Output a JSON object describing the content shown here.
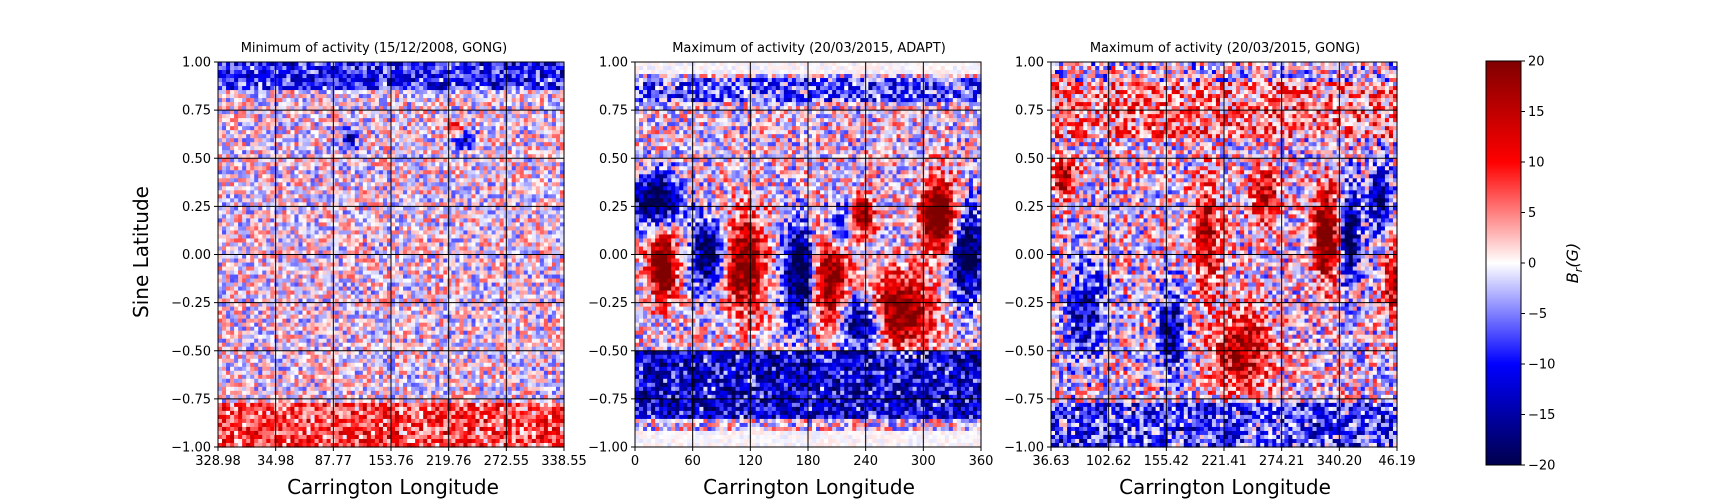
{
  "figure": {
    "ylabel": "Sine Latitude",
    "xlabel": "Carrington Longitude"
  },
  "chart_data": [
    {
      "type": "heatmap",
      "title": "Minimum of activity (15/12/2008, GONG)",
      "xlabel": "Carrington Longitude",
      "ylabel": "Sine Latitude",
      "x_tick_labels": [
        "328.98",
        "34.98",
        "87.77",
        "153.76",
        "219.76",
        "272.55",
        "338.55"
      ],
      "y_ticks": [
        1.0,
        0.75,
        0.5,
        0.25,
        0.0,
        -0.25,
        -0.5,
        -0.75,
        -1.0
      ],
      "y_tick_labels": [
        "1.00",
        "0.75",
        "0.50",
        "0.25",
        "0.00",
        "−0.25",
        "−0.50",
        "−0.75",
        "−1.00"
      ],
      "ylim": [
        -1.0,
        1.0
      ],
      "grid": true,
      "colormap": "seismic",
      "clim": [
        -20,
        20
      ]
    },
    {
      "type": "heatmap",
      "title": "Maximum of activity (20/03/2015, ADAPT)",
      "xlabel": "Carrington Longitude",
      "x_tick_labels": [
        "0",
        "60",
        "120",
        "180",
        "240",
        "300",
        "360"
      ],
      "xlim": [
        0,
        360
      ],
      "y_ticks": [
        1.0,
        0.75,
        0.5,
        0.25,
        0.0,
        -0.25,
        -0.5,
        -0.75,
        -1.0
      ],
      "y_tick_labels": [
        "1.00",
        "0.75",
        "0.50",
        "0.25",
        "0.00",
        "−0.25",
        "−0.50",
        "−0.75",
        "−1.00"
      ],
      "ylim": [
        -1.0,
        1.0
      ],
      "grid": true,
      "colormap": "seismic",
      "clim": [
        -20,
        20
      ]
    },
    {
      "type": "heatmap",
      "title": "Maximum of activity (20/03/2015, GONG)",
      "xlabel": "Carrington Longitude",
      "x_tick_labels": [
        "36.63",
        "102.62",
        "155.42",
        "221.41",
        "274.21",
        "340.20",
        "46.19"
      ],
      "y_ticks": [
        1.0,
        0.75,
        0.5,
        0.25,
        0.0,
        -0.25,
        -0.5,
        -0.75,
        -1.0
      ],
      "y_tick_labels": [
        "1.00",
        "0.75",
        "0.50",
        "0.25",
        "0.00",
        "−0.25",
        "−0.50",
        "−0.75",
        "−1.00"
      ],
      "ylim": [
        -1.0,
        1.0
      ],
      "grid": true,
      "colormap": "seismic",
      "clim": [
        -20,
        20
      ]
    }
  ],
  "colorbar": {
    "label_main": "B",
    "label_sub": "r",
    "label_rest": "(G)",
    "ticks": [
      20,
      15,
      10,
      5,
      0,
      -5,
      -10,
      -15,
      -20
    ],
    "tick_labels": [
      "20",
      "15",
      "10",
      "5",
      "0",
      "−5",
      "−10",
      "−15",
      "−20"
    ],
    "range": [
      -20,
      20
    ],
    "colors": {
      "low": "#00004c",
      "mid": "#ffffff",
      "high": "#800000"
    }
  }
}
